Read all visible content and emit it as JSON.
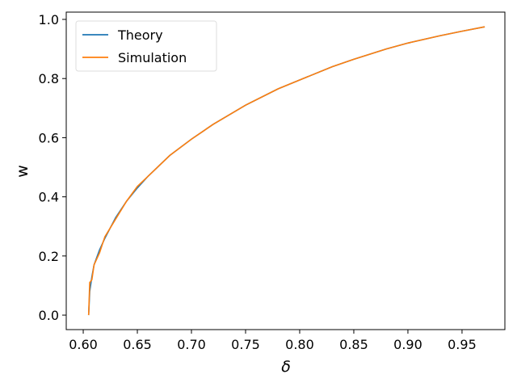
{
  "chart_data": {
    "type": "line",
    "x_label": "δ",
    "y_label": "w",
    "x": [
      0.605,
      0.606,
      0.608,
      0.61,
      0.615,
      0.62,
      0.63,
      0.64,
      0.65,
      0.66,
      0.68,
      0.7,
      0.72,
      0.75,
      0.78,
      0.8,
      0.83,
      0.85,
      0.88,
      0.9,
      0.93,
      0.95,
      0.971
    ],
    "series": [
      {
        "name": "Theory",
        "color": "#1f77b4",
        "values": [
          0,
          0.08,
          0.13,
          0.17,
          0.22,
          0.26,
          0.33,
          0.385,
          0.43,
          0.47,
          0.54,
          0.595,
          0.645,
          0.71,
          0.765,
          0.795,
          0.84,
          0.865,
          0.9,
          0.92,
          0.945,
          0.96,
          0.975
        ]
      },
      {
        "name": "Simulation",
        "color": "#ff7f0e",
        "values": [
          0,
          0.11,
          0.12,
          0.17,
          0.21,
          0.265,
          0.325,
          0.385,
          0.435,
          0.47,
          0.54,
          0.595,
          0.645,
          0.71,
          0.765,
          0.795,
          0.84,
          0.865,
          0.9,
          0.92,
          0.945,
          0.96,
          0.975
        ]
      }
    ],
    "xlim": [
      0.5843,
      0.9896
    ],
    "ylim": [
      -0.049,
      1.0246
    ],
    "xticks": [
      {
        "value": 0.6,
        "label": "0.60"
      },
      0.65,
      {
        "value": 0.7,
        "label": "0.70"
      },
      0.75,
      {
        "value": 0.8,
        "label": "0.80"
      },
      0.85,
      {
        "value": 0.9,
        "label": "0.90"
      },
      0.95
    ],
    "yticks": [
      {
        "value": 0,
        "label": "0.0"
      },
      0.2,
      0.4,
      0.6,
      0.8,
      {
        "value": 1,
        "label": "1.0"
      }
    ],
    "legend": "upper left"
  }
}
